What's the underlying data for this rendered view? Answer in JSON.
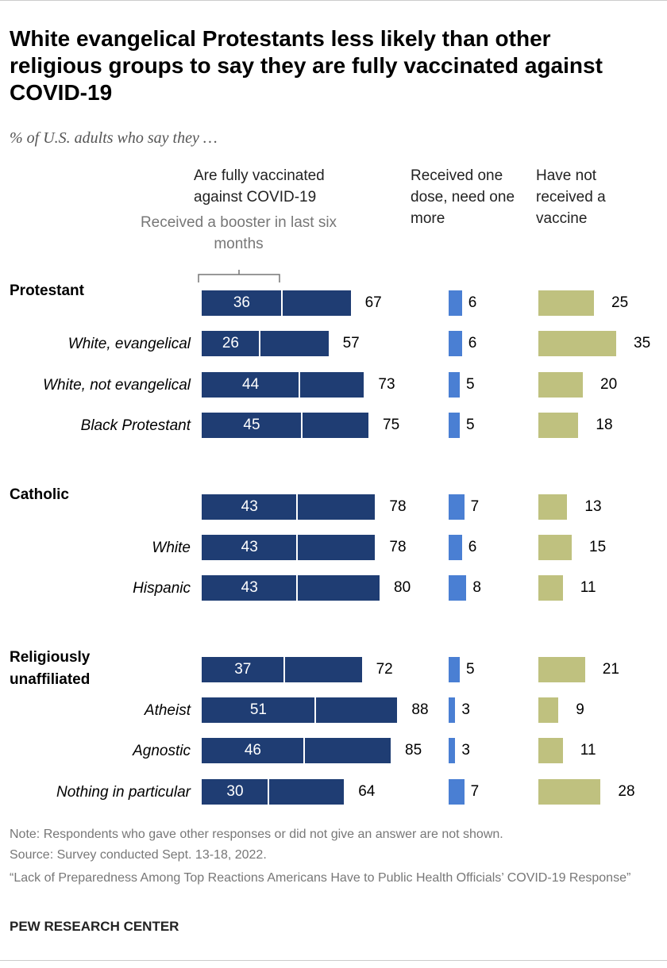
{
  "chart_data": {
    "type": "bar",
    "title": "White evangelical Protestants less likely than other religious groups to say they are fully vaccinated against COVID-19",
    "subtitle": "% of U.S. adults who say they …",
    "categories": [
      "Protestant",
      "White, evangelical",
      "White, not evangelical",
      "Black Protestant",
      "Catholic",
      "White",
      "Hispanic",
      "Religiously unaffiliated",
      "Atheist",
      "Agnostic",
      "Nothing in particular"
    ],
    "category_style": [
      "bold",
      "italic",
      "italic",
      "italic",
      "bold",
      "italic",
      "italic",
      "bold",
      "italic",
      "italic",
      "italic"
    ],
    "series": [
      {
        "name": "Are fully vaccinated against COVID-19",
        "color": "#1f3d73",
        "values": [
          67,
          57,
          73,
          75,
          78,
          78,
          80,
          72,
          88,
          85,
          64
        ],
        "subset": {
          "name": "Received a booster in last six months",
          "divider_color": "#ffffff",
          "values": [
            36,
            26,
            44,
            45,
            43,
            43,
            43,
            37,
            51,
            46,
            30
          ]
        }
      },
      {
        "name": "Received one dose, need one more",
        "color": "#4a7fd3",
        "values": [
          6,
          6,
          5,
          5,
          7,
          6,
          8,
          5,
          3,
          3,
          7
        ]
      },
      {
        "name": "Have not received a vaccine",
        "color": "#bfc17f",
        "values": [
          25,
          35,
          20,
          18,
          13,
          15,
          11,
          21,
          9,
          11,
          28
        ]
      }
    ]
  },
  "note": "Note: Respondents who gave other responses or did not give an answer are not shown.",
  "source": "Source: Survey conducted Sept. 13-18, 2022.",
  "citation": "“Lack of Preparedness Among Top Reactions Americans Have to Public Health Officials’ COVID-19 Response”",
  "brand": "PEW RESEARCH CENTER"
}
